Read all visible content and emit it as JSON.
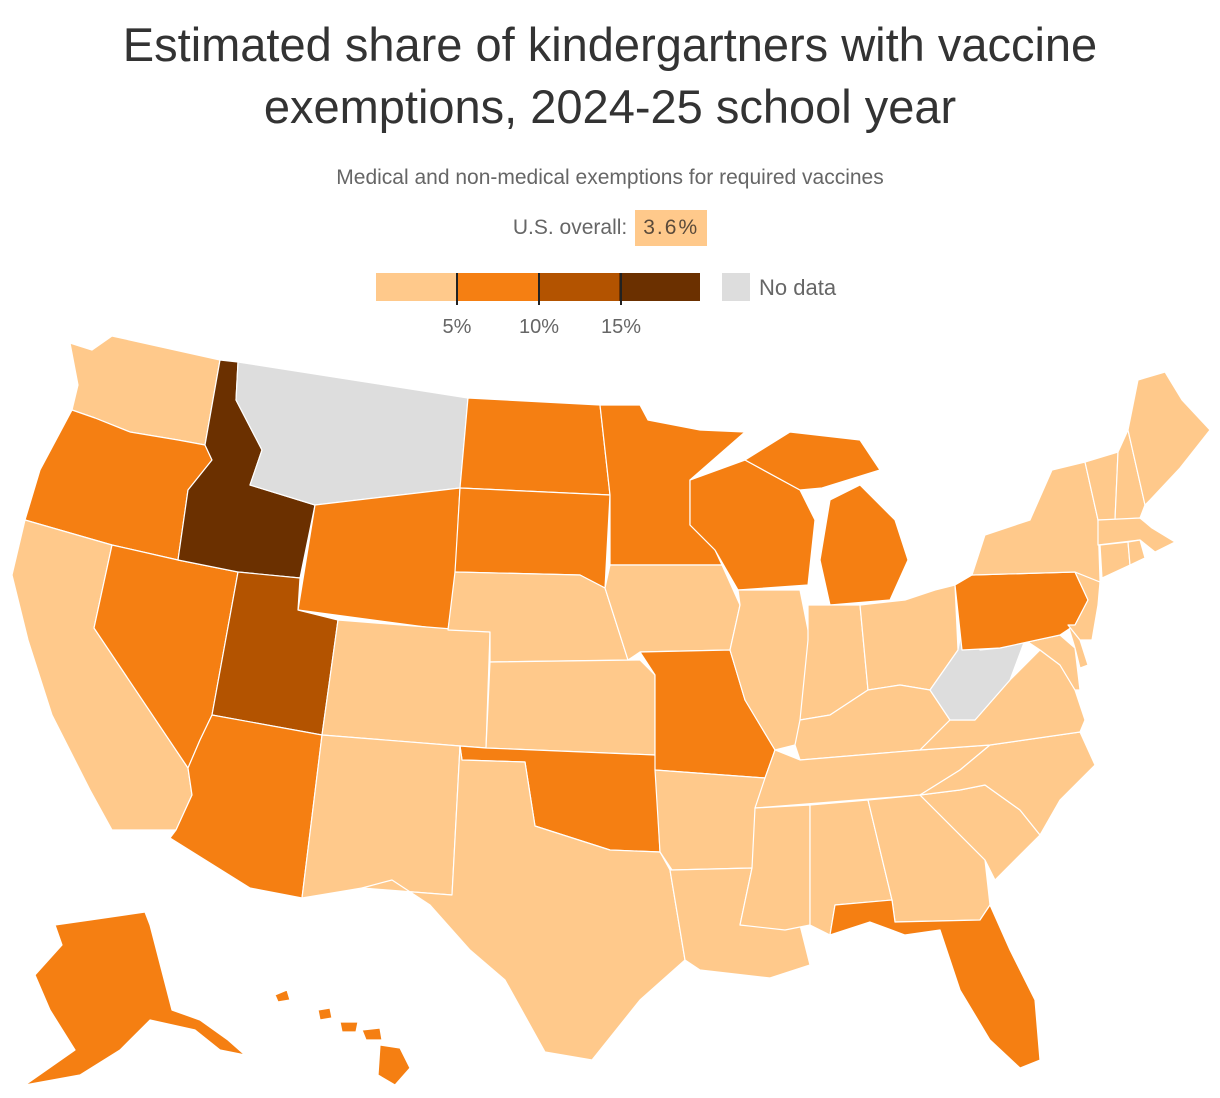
{
  "header": {
    "title_line1": "Estimated share of kindergartners with vaccine",
    "title_line2": "exemptions, 2024-25 school year",
    "subtitle": "Medical and non-medical exemptions for required vaccines",
    "overall_label": "U.S. overall:",
    "overall_value": "3.6%"
  },
  "legend": {
    "bins": [
      {
        "color": "#ffc98b"
      },
      {
        "color": "#f57f12"
      },
      {
        "color": "#b35300"
      },
      {
        "color": "#6b3000"
      }
    ],
    "ticks": [
      "5%",
      "10%",
      "15%"
    ],
    "nodata_label": "No data",
    "nodata_color": "#dddddd"
  },
  "colors": {
    "bin1": "#ffc98b",
    "bin2": "#f57f12",
    "bin3": "#b35300",
    "bin4": "#6b3000",
    "nodata": "#dddddd"
  },
  "states": [
    {
      "abbr": "WA",
      "bin": 1
    },
    {
      "abbr": "OR",
      "bin": 2
    },
    {
      "abbr": "CA",
      "bin": 1
    },
    {
      "abbr": "NV",
      "bin": 2
    },
    {
      "abbr": "ID",
      "bin": 4
    },
    {
      "abbr": "MT",
      "bin": 0
    },
    {
      "abbr": "WY",
      "bin": 2
    },
    {
      "abbr": "UT",
      "bin": 3
    },
    {
      "abbr": "AZ",
      "bin": 2
    },
    {
      "abbr": "CO",
      "bin": 1
    },
    {
      "abbr": "NM",
      "bin": 1
    },
    {
      "abbr": "ND",
      "bin": 2
    },
    {
      "abbr": "SD",
      "bin": 2
    },
    {
      "abbr": "NE",
      "bin": 1
    },
    {
      "abbr": "KS",
      "bin": 1
    },
    {
      "abbr": "OK",
      "bin": 2
    },
    {
      "abbr": "TX",
      "bin": 1
    },
    {
      "abbr": "MN",
      "bin": 2
    },
    {
      "abbr": "IA",
      "bin": 1
    },
    {
      "abbr": "MO",
      "bin": 2
    },
    {
      "abbr": "AR",
      "bin": 1
    },
    {
      "abbr": "LA",
      "bin": 1
    },
    {
      "abbr": "WI",
      "bin": 2
    },
    {
      "abbr": "IL",
      "bin": 1
    },
    {
      "abbr": "MI",
      "bin": 2
    },
    {
      "abbr": "IN",
      "bin": 1
    },
    {
      "abbr": "OH",
      "bin": 1
    },
    {
      "abbr": "KY",
      "bin": 1
    },
    {
      "abbr": "TN",
      "bin": 1
    },
    {
      "abbr": "MS",
      "bin": 1
    },
    {
      "abbr": "AL",
      "bin": 1
    },
    {
      "abbr": "GA",
      "bin": 1
    },
    {
      "abbr": "FL",
      "bin": 2
    },
    {
      "abbr": "SC",
      "bin": 1
    },
    {
      "abbr": "NC",
      "bin": 1
    },
    {
      "abbr": "VA",
      "bin": 1
    },
    {
      "abbr": "WV",
      "bin": 0
    },
    {
      "abbr": "PA",
      "bin": 2
    },
    {
      "abbr": "NY",
      "bin": 1
    },
    {
      "abbr": "VT",
      "bin": 1
    },
    {
      "abbr": "NH",
      "bin": 1
    },
    {
      "abbr": "ME",
      "bin": 1
    },
    {
      "abbr": "MA",
      "bin": 1
    },
    {
      "abbr": "RI",
      "bin": 1
    },
    {
      "abbr": "CT",
      "bin": 1
    },
    {
      "abbr": "NJ",
      "bin": 1
    },
    {
      "abbr": "DE",
      "bin": 1
    },
    {
      "abbr": "MD",
      "bin": 1
    },
    {
      "abbr": "AK",
      "bin": 2
    },
    {
      "abbr": "HI",
      "bin": 2
    }
  ]
}
